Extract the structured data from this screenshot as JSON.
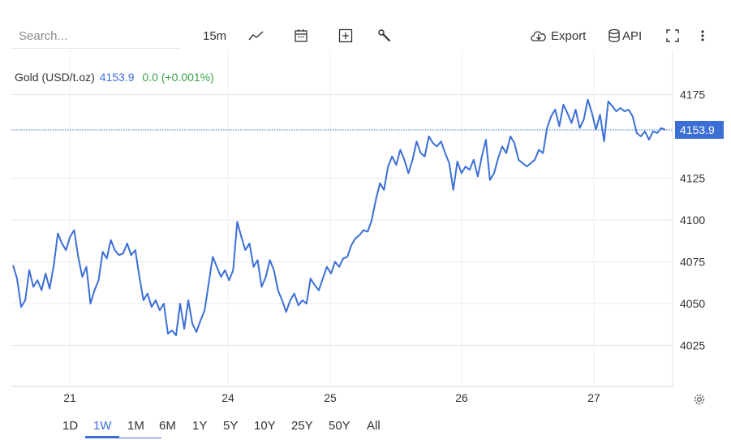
{
  "toolbar": {
    "search_placeholder": "Search...",
    "interval": "15m",
    "export_label": "Export",
    "api_label": "API"
  },
  "title": {
    "name": "Gold (USD/t.oz)",
    "price": "4153.9",
    "change": "0.0 (+0.001%)"
  },
  "colors": {
    "line": "#3b6fd6",
    "change_positive": "#3aa34a",
    "price_tag_bg": "#3b6fd6",
    "grid": "#e8e8e8"
  },
  "chart_data": {
    "type": "line",
    "title": "Gold (USD/t.oz)",
    "xlabel": "",
    "ylabel": "",
    "ylim": [
      4000,
      4185
    ],
    "y_ticks": [
      4025,
      4050,
      4075,
      4100,
      4125,
      4175
    ],
    "x_ticks": [
      "21",
      "24",
      "25",
      "26",
      "27"
    ],
    "last_price_label": "4153.9",
    "last_price": 4153.9,
    "grid": true,
    "series": [
      {
        "values": [
          4073,
          4065,
          4048,
          4052,
          4070,
          4060,
          4064,
          4058,
          4068,
          4059,
          4073,
          4092,
          4086,
          4082,
          4090,
          4094,
          4078,
          4066,
          4072,
          4050,
          4058,
          4064,
          4081,
          4077,
          4088,
          4082,
          4079,
          4080,
          4086,
          4079,
          4082,
          4066,
          4052,
          4056,
          4048,
          4052,
          4046,
          4050,
          4032,
          4034,
          4031,
          4050,
          4035,
          4052,
          4038,
          4033,
          4040,
          4046,
          4062,
          4078,
          4072,
          4066,
          4070,
          4064,
          4070,
          4099,
          4090,
          4082,
          4086,
          4072,
          4076,
          4060,
          4066,
          4076,
          4070,
          4058,
          4052,
          4045,
          4052,
          4056,
          4049,
          4052,
          4050,
          4065,
          4061,
          4058,
          4065,
          4072,
          4068,
          4075,
          4072,
          4077,
          4078,
          4085,
          4089,
          4091,
          4094,
          4093,
          4100,
          4112,
          4122,
          4118,
          4132,
          4138,
          4133,
          4142,
          4136,
          4128,
          4136,
          4147,
          4140,
          4138,
          4150,
          4146,
          4144,
          4147,
          4140,
          4134,
          4118,
          4135,
          4128,
          4132,
          4130,
          4136,
          4126,
          4138,
          4148,
          4124,
          4128,
          4137,
          4144,
          4140,
          4150,
          4146,
          4136,
          4134,
          4132,
          4134,
          4136,
          4142,
          4140,
          4155,
          4162,
          4166,
          4156,
          4169,
          4164,
          4158,
          4166,
          4155,
          4160,
          4172,
          4164,
          4154,
          4163,
          4147,
          4171,
          4168,
          4165,
          4167,
          4165,
          4166,
          4162,
          4152,
          4150,
          4153,
          4148,
          4153,
          4152,
          4155,
          4153.9
        ]
      }
    ]
  },
  "ranges": [
    {
      "label": "1D",
      "active": false
    },
    {
      "label": "1W",
      "active": true
    },
    {
      "label": "1M",
      "active": false
    },
    {
      "label": "6M",
      "active": false
    },
    {
      "label": "1Y",
      "active": false
    },
    {
      "label": "5Y",
      "active": false
    },
    {
      "label": "10Y",
      "active": false
    },
    {
      "label": "25Y",
      "active": false
    },
    {
      "label": "50Y",
      "active": false
    },
    {
      "label": "All",
      "active": false
    }
  ],
  "icons": {
    "line_chart": "line-chart-icon",
    "calendar": "calendar-icon",
    "add": "plus-box-icon",
    "tools": "wrench-icon",
    "export": "cloud-download-icon",
    "api": "database-icon",
    "fullscreen": "fullscreen-icon",
    "more": "more-vertical-icon",
    "settings": "gear-icon"
  }
}
